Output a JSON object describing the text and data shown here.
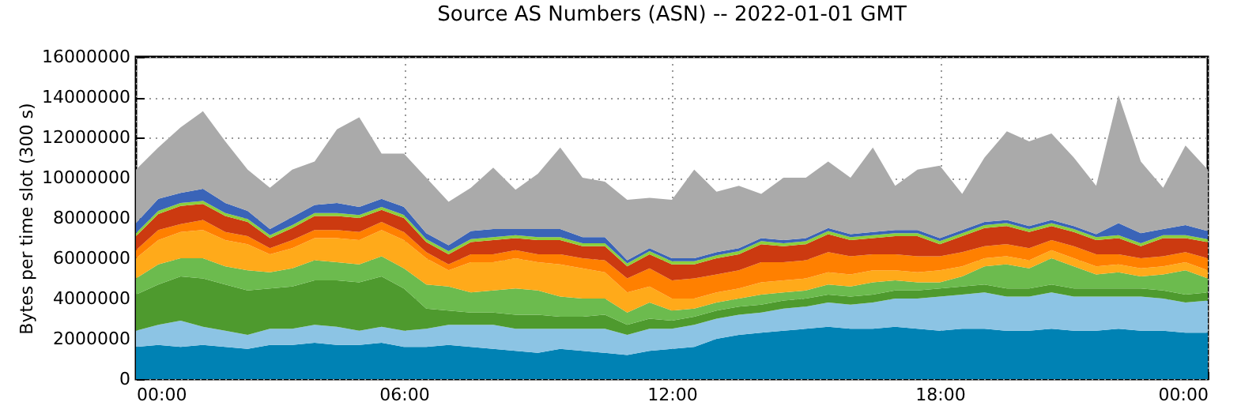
{
  "chart_data": {
    "type": "area",
    "stacked": true,
    "grid": true,
    "title": "Source AS Numbers (ASN) -- 2022-01-01 GMT",
    "ylabel": "Bytes per time slot (300 s)",
    "x": [
      0,
      0.5,
      1,
      1.5,
      2,
      2.5,
      3,
      3.5,
      4,
      4.5,
      5,
      5.5,
      6,
      6.5,
      7,
      7.5,
      8,
      8.5,
      9,
      9.5,
      10,
      10.5,
      11,
      11.5,
      12,
      12.5,
      13,
      13.5,
      14,
      14.5,
      15,
      15.5,
      16,
      16.5,
      17,
      17.5,
      18,
      18.5,
      19,
      19.5,
      20,
      20.5,
      21,
      21.5,
      22,
      22.5,
      23,
      23.5,
      24
    ],
    "xlim": [
      0,
      24
    ],
    "xticks": [
      {
        "value": 0,
        "label": "00:00"
      },
      {
        "value": 6,
        "label": "06:00"
      },
      {
        "value": 12,
        "label": "12:00"
      },
      {
        "value": 18,
        "label": "18:00"
      },
      {
        "value": 24,
        "label": "00:00"
      }
    ],
    "ylim": [
      0,
      16000000
    ],
    "yticks": [
      0,
      2000000,
      4000000,
      6000000,
      8000000,
      10000000,
      12000000,
      14000000,
      16000000
    ],
    "series": [
      {
        "color": "#0082b4",
        "values": [
          1600000.0,
          1700000.0,
          1600000.0,
          1700000.0,
          1600000.0,
          1500000.0,
          1700000.0,
          1700000.0,
          1800000.0,
          1700000.0,
          1700000.0,
          1800000.0,
          1600000.0,
          1600000.0,
          1700000.0,
          1600000.0,
          1500000.0,
          1400000.0,
          1300000.0,
          1500000.0,
          1400000.0,
          1300000.0,
          1200000.0,
          1400000.0,
          1500000.0,
          1600000.0,
          2000000.0,
          2200000.0,
          2300000.0,
          2400000.0,
          2500000.0,
          2600000.0,
          2500000.0,
          2500000.0,
          2600000.0,
          2500000.0,
          2400000.0,
          2500000.0,
          2500000.0,
          2400000.0,
          2400000.0,
          2500000.0,
          2400000.0,
          2400000.0,
          2500000.0,
          2400000.0,
          2400000.0,
          2300000.0,
          2300000.0
        ]
      },
      {
        "color": "#8cc4e4",
        "values": [
          800000.0,
          1000000.0,
          1300000.0,
          900000.0,
          800000.0,
          700000.0,
          800000.0,
          800000.0,
          900000.0,
          900000.0,
          700000.0,
          800000.0,
          800000.0,
          900000.0,
          1000000.0,
          1100000.0,
          1200000.0,
          1100000.0,
          1200000.0,
          1000000.0,
          1100000.0,
          1200000.0,
          1000000.0,
          1100000.0,
          1000000.0,
          1100000.0,
          1000000.0,
          1000000.0,
          1000000.0,
          1100000.0,
          1100000.0,
          1200000.0,
          1200000.0,
          1300000.0,
          1400000.0,
          1500000.0,
          1700000.0,
          1700000.0,
          1800000.0,
          1700000.0,
          1700000.0,
          1800000.0,
          1700000.0,
          1700000.0,
          1600000.0,
          1700000.0,
          1600000.0,
          1500000.0,
          1600000.0
        ]
      },
      {
        "color": "#4e9a2e",
        "values": [
          1800000.0,
          2000000.0,
          2200000.0,
          2400000.0,
          2300000.0,
          2200000.0,
          2000000.0,
          2100000.0,
          2200000.0,
          2300000.0,
          2400000.0,
          2500000.0,
          2100000.0,
          1000000.0,
          700000.0,
          600000.0,
          600000.0,
          700000.0,
          700000.0,
          600000.0,
          600000.0,
          700000.0,
          500000.0,
          500000.0,
          400000.0,
          400000.0,
          400000.0,
          400000.0,
          400000.0,
          400000.0,
          400000.0,
          400000.0,
          400000.0,
          400000.0,
          400000.0,
          400000.0,
          400000.0,
          400000.0,
          400000.0,
          400000.0,
          400000.0,
          400000.0,
          400000.0,
          400000.0,
          400000.0,
          400000.0,
          400000.0,
          400000.0,
          400000.0
        ]
      },
      {
        "color": "#6cbb4e",
        "values": [
          800000.0,
          1000000.0,
          900000.0,
          1000000.0,
          900000.0,
          1000000.0,
          800000.0,
          900000.0,
          1000000.0,
          900000.0,
          900000.0,
          1000000.0,
          1000000.0,
          1200000.0,
          1200000.0,
          1000000.0,
          1100000.0,
          1300000.0,
          1200000.0,
          1000000.0,
          900000.0,
          800000.0,
          600000.0,
          800000.0,
          500000.0,
          400000.0,
          400000.0,
          400000.0,
          500000.0,
          400000.0,
          400000.0,
          500000.0,
          500000.0,
          600000.0,
          500000.0,
          400000.0,
          300000.0,
          500000.0,
          900000.0,
          1200000.0,
          1000000.0,
          1300000.0,
          1100000.0,
          700000.0,
          800000.0,
          600000.0,
          800000.0,
          1200000.0,
          700000.0
        ]
      },
      {
        "color": "#ffaa1a",
        "values": [
          1000000.0,
          1200000.0,
          1300000.0,
          1400000.0,
          1300000.0,
          1300000.0,
          900000.0,
          1000000.0,
          1100000.0,
          1200000.0,
          1200000.0,
          1300000.0,
          1400000.0,
          1300000.0,
          800000.0,
          1500000.0,
          1400000.0,
          1500000.0,
          1400000.0,
          1600000.0,
          1500000.0,
          1300000.0,
          1000000.0,
          800000.0,
          600000.0,
          500000.0,
          500000.0,
          500000.0,
          600000.0,
          600000.0,
          600000.0,
          600000.0,
          600000.0,
          600000.0,
          500000.0,
          500000.0,
          600000.0,
          500000.0,
          400000.0,
          400000.0,
          400000.0,
          400000.0,
          400000.0,
          400000.0,
          400000.0,
          400000.0,
          400000.0,
          400000.0,
          400000.0
        ]
      },
      {
        "color": "#ff8000",
        "values": [
          400000.0,
          500000.0,
          400000.0,
          500000.0,
          400000.0,
          400000.0,
          300000.0,
          400000.0,
          400000.0,
          400000.0,
          400000.0,
          400000.0,
          400000.0,
          300000.0,
          300000.0,
          400000.0,
          400000.0,
          400000.0,
          400000.0,
          500000.0,
          500000.0,
          600000.0,
          700000.0,
          900000.0,
          900000.0,
          1000000.0,
          900000.0,
          900000.0,
          1000000.0,
          900000.0,
          900000.0,
          1000000.0,
          900000.0,
          800000.0,
          800000.0,
          800000.0,
          700000.0,
          700000.0,
          600000.0,
          600000.0,
          600000.0,
          500000.0,
          600000.0,
          600000.0,
          500000.0,
          500000.0,
          500000.0,
          500000.0,
          600000.0
        ]
      },
      {
        "color": "#cc3a10",
        "values": [
          700000.0,
          800000.0,
          900000.0,
          800000.0,
          800000.0,
          700000.0,
          500000.0,
          600000.0,
          700000.0,
          700000.0,
          700000.0,
          600000.0,
          700000.0,
          500000.0,
          500000.0,
          600000.0,
          700000.0,
          600000.0,
          700000.0,
          700000.0,
          600000.0,
          700000.0,
          600000.0,
          700000.0,
          800000.0,
          700000.0,
          800000.0,
          800000.0,
          900000.0,
          800000.0,
          800000.0,
          900000.0,
          800000.0,
          800000.0,
          900000.0,
          1000000.0,
          600000.0,
          800000.0,
          900000.0,
          900000.0,
          800000.0,
          700000.0,
          700000.0,
          700000.0,
          800000.0,
          600000.0,
          900000.0,
          700000.0,
          800000.0
        ]
      },
      {
        "color": "#8ccf3c",
        "values": [
          150000.0,
          150000.0,
          150000.0,
          150000.0,
          150000.0,
          150000.0,
          150000.0,
          150000.0,
          150000.0,
          150000.0,
          150000.0,
          150000.0,
          150000.0,
          150000.0,
          150000.0,
          150000.0,
          150000.0,
          150000.0,
          150000.0,
          150000.0,
          150000.0,
          150000.0,
          150000.0,
          150000.0,
          150000.0,
          150000.0,
          150000.0,
          150000.0,
          150000.0,
          150000.0,
          150000.0,
          150000.0,
          150000.0,
          150000.0,
          150000.0,
          150000.0,
          150000.0,
          150000.0,
          150000.0,
          150000.0,
          150000.0,
          150000.0,
          150000.0,
          150000.0,
          150000.0,
          150000.0,
          150000.0,
          150000.0,
          150000.0
        ]
      },
      {
        "color": "#3a64b8",
        "values": [
          500000.0,
          600000.0,
          500000.0,
          600000.0,
          500000.0,
          400000.0,
          300000.0,
          400000.0,
          400000.0,
          500000.0,
          400000.0,
          400000.0,
          400000.0,
          300000.0,
          300000.0,
          400000.0,
          400000.0,
          300000.0,
          400000.0,
          400000.0,
          300000.0,
          300000.0,
          150000.0,
          150000.0,
          150000.0,
          150000.0,
          150000.0,
          150000.0,
          150000.0,
          150000.0,
          150000.0,
          150000.0,
          150000.0,
          150000.0,
          150000.0,
          150000.0,
          150000.0,
          150000.0,
          150000.0,
          150000.0,
          150000.0,
          150000.0,
          150000.0,
          150000.0,
          600000.0,
          500000.0,
          300000.0,
          500000.0,
          400000.0
        ]
      },
      {
        "color": "#aaaaaa",
        "values": [
          2650000.0,
          2550000.0,
          3250000.0,
          3850000.0,
          3050000.0,
          2050000.0,
          2050000.0,
          2350000.0,
          2150000.0,
          3650000.0,
          4450000.0,
          2250000.0,
          2650000.0,
          2750000.0,
          2150000.0,
          2150000.0,
          3050000.0,
          1950000.0,
          2750000.0,
          4050000.0,
          2950000.0,
          2750000.0,
          3000000.0,
          2500000.0,
          2900000.0,
          4400000.0,
          3000000.0,
          3100000.0,
          2200000.0,
          3100000.0,
          3000000.0,
          3300000.0,
          2800000.0,
          4200000.0,
          2200000.0,
          3000000.0,
          3600000.0,
          1800000.0,
          3200000.0,
          4400000.0,
          4200000.0,
          4300000.0,
          3400000.0,
          2400000.0,
          6350000.0,
          3550000.0,
          2050000.0,
          3950000.0,
          3050000.0
        ]
      }
    ]
  }
}
